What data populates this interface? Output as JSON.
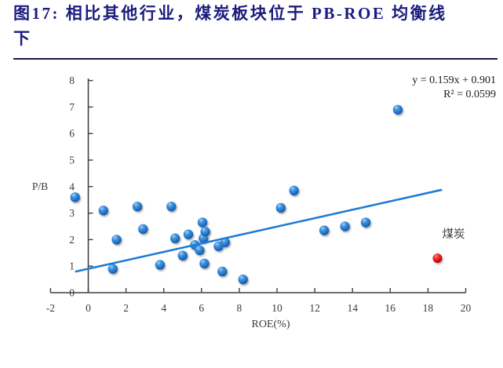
{
  "title": {
    "line1": "图17: 相比其他行业，煤炭板块位于 PB-ROE 均衡线",
    "line2": "下"
  },
  "chart_data": {
    "type": "scatter",
    "xlabel": "ROE(%)",
    "ylabel": "P/B",
    "xlim": [
      -2,
      20
    ],
    "ylim": [
      0,
      8
    ],
    "xticks": [
      -2,
      0,
      2,
      4,
      6,
      8,
      10,
      12,
      14,
      16,
      18,
      20
    ],
    "yticks": [
      0,
      1,
      2,
      3,
      4,
      5,
      6,
      7,
      8
    ],
    "grid": false,
    "legend_position": "none",
    "annotations": {
      "equation": "y = 0.159x + 0.901",
      "r_squared": "R² = 0.0599"
    },
    "series": [
      {
        "marker_color": "#1b74cc",
        "points": [
          [
            -0.7,
            3.6
          ],
          [
            0.8,
            3.1
          ],
          [
            1.3,
            0.9
          ],
          [
            1.5,
            2.0
          ],
          [
            2.6,
            3.25
          ],
          [
            2.9,
            2.4
          ],
          [
            3.8,
            1.05
          ],
          [
            4.4,
            3.25
          ],
          [
            4.6,
            2.05
          ],
          [
            5.0,
            1.4
          ],
          [
            5.3,
            2.2
          ],
          [
            5.65,
            1.8
          ],
          [
            5.9,
            1.6
          ],
          [
            6.05,
            2.65
          ],
          [
            6.1,
            2.05
          ],
          [
            6.15,
            1.1
          ],
          [
            6.2,
            2.3
          ],
          [
            6.9,
            1.75
          ],
          [
            7.1,
            0.8
          ],
          [
            7.25,
            1.9
          ],
          [
            8.2,
            0.5
          ],
          [
            10.2,
            3.2
          ],
          [
            10.9,
            3.85
          ],
          [
            12.5,
            2.35
          ],
          [
            13.6,
            2.5
          ],
          [
            14.7,
            2.65
          ],
          [
            16.4,
            6.9
          ]
        ]
      },
      {
        "label": "煤炭",
        "marker_color": "#e30613",
        "points": [
          [
            18.5,
            1.3
          ]
        ]
      }
    ],
    "trendline": {
      "slope": 0.159,
      "intercept": 0.901,
      "x_start": -0.65,
      "x_end": 18.7,
      "color": "#1e7cd6"
    }
  },
  "colors": {
    "title": "#1b1b7e",
    "axis": "#404040",
    "tick_label": "#3a3a3a",
    "annotation": "#1a1a1a",
    "coal_label": "#3c3c3c"
  }
}
